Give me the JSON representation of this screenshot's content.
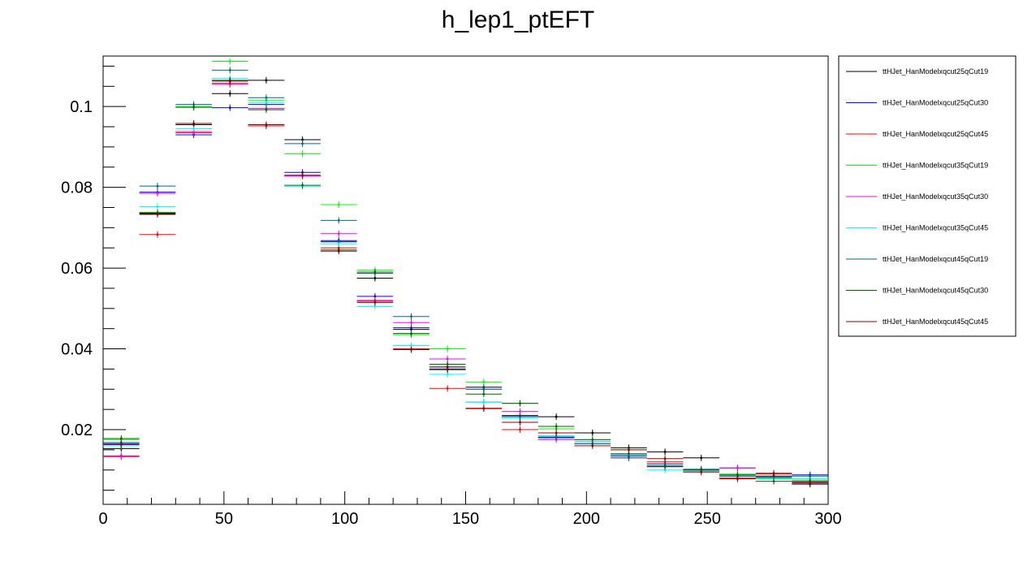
{
  "chart_data": {
    "type": "step-histogram",
    "title": "h_lep1_ptEFT",
    "xlabel": "",
    "ylabel": "",
    "xlim": [
      0,
      300
    ],
    "ylim": [
      0.0015,
      0.1125
    ],
    "xticks": [
      0,
      50,
      100,
      150,
      200,
      250,
      300
    ],
    "xtick_labels": [
      "0",
      "50",
      "100",
      "150",
      "200",
      "250",
      "300"
    ],
    "yticks": [
      0.02,
      0.04,
      0.06,
      0.08,
      0.1
    ],
    "ytick_labels": [
      "0.02",
      "0.04",
      "0.06",
      "0.08",
      "0.1"
    ],
    "legend_position": "right",
    "grid": false,
    "bin_edges": [
      0,
      15,
      30,
      45,
      60,
      75,
      90,
      105,
      120,
      135,
      150,
      165,
      180,
      195,
      210,
      225,
      240,
      255,
      270,
      285,
      300
    ],
    "series": [
      {
        "name": "ttHJet_HanModelxqcut25qCut19",
        "color": "#000000",
        "values": [
          0.0153,
          0.0735,
          0.0955,
          0.1032,
          0.1065,
          0.0918,
          0.0665,
          0.0575,
          0.0448,
          0.0355,
          0.0305,
          0.0235,
          0.0232,
          0.0192,
          0.0155,
          0.0145,
          0.013,
          0.0105,
          0.0085,
          0.0065
        ]
      },
      {
        "name": "ttHJet_HanModelxqcut25qCut30",
        "color": "#0000ff",
        "values": [
          0.0165,
          0.0788,
          0.093,
          0.0997,
          0.1005,
          0.0837,
          0.0668,
          0.053,
          0.0452,
          0.035,
          0.0268,
          0.0232,
          0.018,
          0.0165,
          0.0135,
          0.011,
          0.0098,
          0.0085,
          0.008,
          0.0088
        ]
      },
      {
        "name": "ttHJet_HanModelxqcut25qCut45",
        "color": "#ff0000",
        "values": [
          0.0135,
          0.0683,
          0.0935,
          0.1055,
          0.0952,
          0.0828,
          0.065,
          0.0518,
          0.04,
          0.0302,
          0.0253,
          0.02,
          0.0185,
          0.017,
          0.014,
          0.012,
          0.01,
          0.008,
          0.009,
          0.0068
        ]
      },
      {
        "name": "ttHJet_HanModelxqcut35qCut19",
        "color": "#00ff00",
        "values": [
          0.0175,
          0.0738,
          0.1,
          0.1112,
          0.1015,
          0.0883,
          0.0757,
          0.0595,
          0.0435,
          0.04,
          0.0318,
          0.0265,
          0.0202,
          0.0175,
          0.015,
          0.0115,
          0.01,
          0.009,
          0.008,
          0.0075
        ]
      },
      {
        "name": "ttHJet_HanModelxqcut35qCut30",
        "color": "#ff00ff",
        "values": [
          0.0133,
          0.0785,
          0.0938,
          0.1058,
          0.0995,
          0.0828,
          0.0685,
          0.052,
          0.0465,
          0.0375,
          0.03,
          0.0245,
          0.0175,
          0.017,
          0.013,
          0.0115,
          0.0098,
          0.0105,
          0.0078,
          0.007
        ]
      },
      {
        "name": "ttHJet_HanModelxqcut35qCut45",
        "color": "#00ffff",
        "values": [
          0.016,
          0.0752,
          0.0945,
          0.107,
          0.101,
          0.0802,
          0.066,
          0.0505,
          0.0408,
          0.0337,
          0.0268,
          0.0228,
          0.0185,
          0.017,
          0.0138,
          0.01,
          0.0098,
          0.0085,
          0.0078,
          0.0078
        ]
      },
      {
        "name": "ttHJet_HanModelxqcut45qCut19",
        "color": "#00688b",
        "values": [
          0.0168,
          0.0803,
          0.1005,
          0.109,
          0.1022,
          0.0908,
          0.0718,
          0.0587,
          0.048,
          0.0348,
          0.03,
          0.0232,
          0.0182,
          0.0165,
          0.013,
          0.0115,
          0.0102,
          0.0085,
          0.0082,
          0.0085
        ]
      },
      {
        "name": "ttHJet_HanModelxqcut45qCut30",
        "color": "#006400",
        "values": [
          0.0178,
          0.0737,
          0.0998,
          0.1065,
          0.0992,
          0.0805,
          0.0645,
          0.059,
          0.0438,
          0.0362,
          0.0288,
          0.0265,
          0.0208,
          0.0175,
          0.014,
          0.0108,
          0.01,
          0.0088,
          0.0072,
          0.0072
        ]
      },
      {
        "name": "ttHJet_HanModelxqcut45qCut45",
        "color": "#8b0000",
        "values": [
          0.0163,
          0.0733,
          0.0958,
          0.1063,
          0.0955,
          0.083,
          0.0642,
          0.0515,
          0.0398,
          0.035,
          0.0252,
          0.0218,
          0.0192,
          0.016,
          0.015,
          0.0128,
          0.0095,
          0.0078,
          0.0092,
          0.0068
        ]
      }
    ]
  }
}
